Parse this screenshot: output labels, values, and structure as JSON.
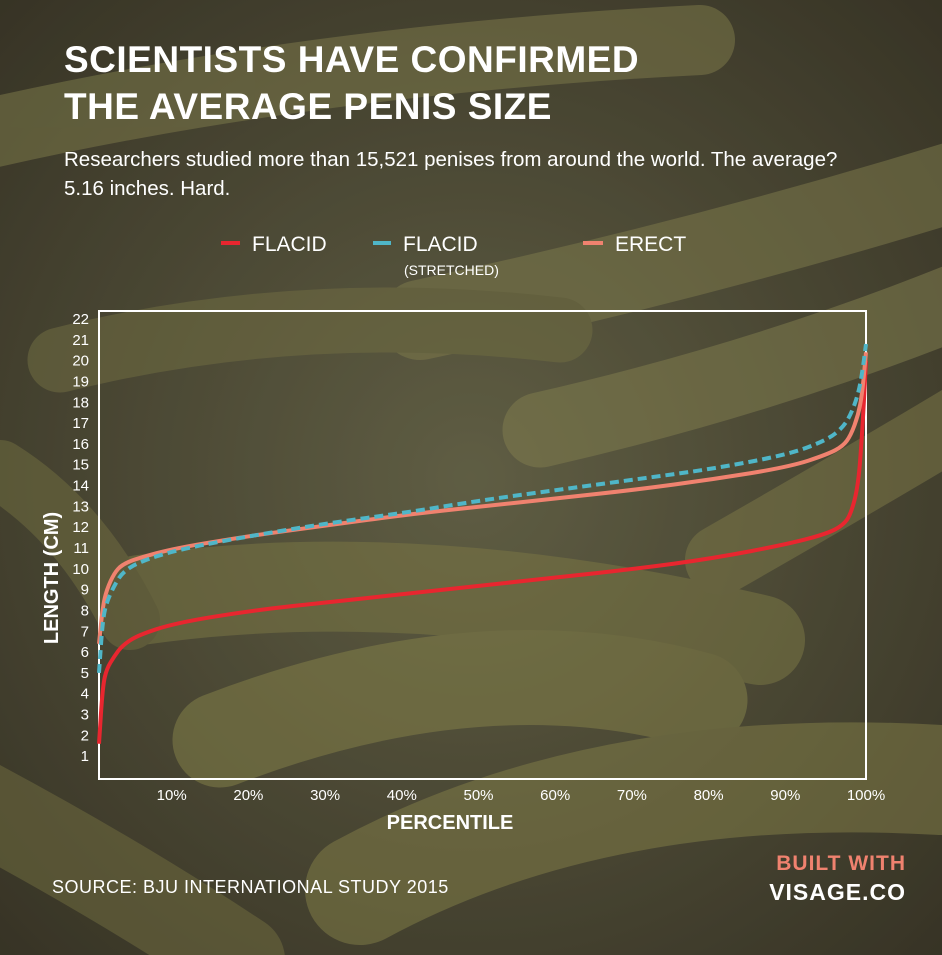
{
  "title_lines": [
    "SCIENTISTS HAVE CONFIRMED",
    "THE AVERAGE PENIS SIZE"
  ],
  "subtitle": "Researchers studied more than 15,521 penises from around the world. The average? 5.16 inches. Hard.",
  "source": "SOURCE: BJU INTERNATIONAL STUDY 2015",
  "branding": {
    "line1": "BUILT WITH",
    "line2": "VISAGE.CO"
  },
  "colors": {
    "flaccid": "#e8262f",
    "stretched": "#4fb6c8",
    "erect": "#f0826f",
    "accent": "#f0826f"
  },
  "chart_data": {
    "type": "line",
    "xlabel": "PERCENTILE",
    "ylabel": "LENGTH (CM)",
    "xlim": [
      0,
      100
    ],
    "ylim": [
      0,
      22
    ],
    "x_ticks": [
      "10%",
      "20%",
      "30%",
      "40%",
      "50%",
      "60%",
      "70%",
      "80%",
      "90%",
      "100%"
    ],
    "y_ticks": [
      "1",
      "2",
      "3",
      "4",
      "5",
      "6",
      "7",
      "8",
      "9",
      "10",
      "11",
      "12",
      "13",
      "14",
      "15",
      "16",
      "17",
      "18",
      "19",
      "20",
      "21",
      "22"
    ],
    "legend_position": "top",
    "series": [
      {
        "name": "FLACID",
        "style": "solid",
        "color": "#e8262f",
        "x": [
          0,
          0.5,
          1,
          2,
          3,
          5,
          10,
          20,
          30,
          40,
          50,
          60,
          70,
          80,
          90,
          95,
          97,
          98,
          99,
          99.5,
          100
        ],
        "y": [
          1.6,
          4.4,
          5.2,
          5.8,
          6.3,
          6.8,
          7.4,
          8.0,
          8.4,
          8.8,
          9.2,
          9.6,
          10.0,
          10.5,
          11.2,
          11.7,
          12.1,
          12.6,
          14.0,
          16.5,
          20.0
        ]
      },
      {
        "name": "FLACID",
        "name_sub": "(STRETCHED)",
        "style": "dashed",
        "color": "#4fb6c8",
        "x": [
          0,
          0.5,
          1,
          2,
          3,
          5,
          10,
          20,
          30,
          40,
          50,
          60,
          70,
          80,
          90,
          95,
          97,
          98,
          99,
          99.5,
          100
        ],
        "y": [
          5.0,
          7.6,
          8.4,
          9.2,
          9.8,
          10.3,
          10.9,
          11.6,
          12.2,
          12.7,
          13.3,
          13.8,
          14.3,
          14.8,
          15.5,
          16.2,
          16.8,
          17.4,
          18.4,
          19.4,
          20.8
        ]
      },
      {
        "name": "ERECT",
        "style": "solid",
        "color": "#f0826f",
        "x": [
          0,
          0.5,
          1,
          2,
          3,
          5,
          10,
          20,
          30,
          40,
          50,
          60,
          70,
          80,
          90,
          95,
          97,
          98,
          99,
          99.5,
          100
        ],
        "y": [
          6.4,
          8.2,
          9.0,
          9.8,
          10.2,
          10.5,
          11.0,
          11.6,
          12.1,
          12.6,
          13.0,
          13.4,
          13.8,
          14.3,
          14.9,
          15.5,
          15.9,
          16.4,
          17.4,
          18.4,
          20.4
        ]
      }
    ]
  }
}
